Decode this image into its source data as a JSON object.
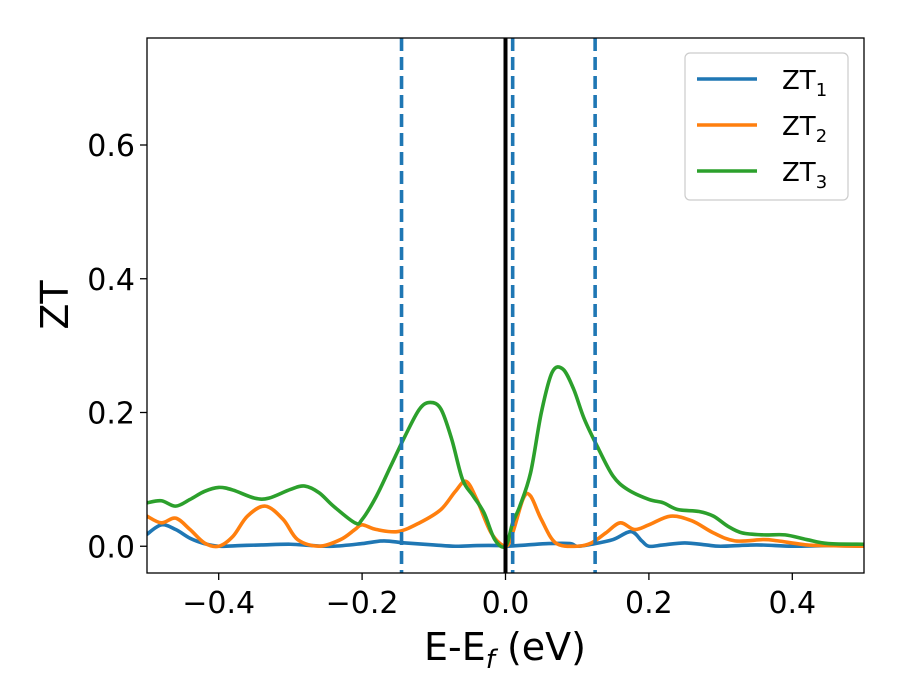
{
  "chart_data": {
    "type": "line",
    "xlabel_main": "E-E",
    "xlabel_sub": "f",
    "xlabel_unit": " (eV)",
    "ylabel": "ZT",
    "xlim": [
      -0.5,
      0.5
    ],
    "ylim": [
      -0.04,
      0.76
    ],
    "grid": false,
    "legend_position": "top-right",
    "x_ticks": [
      -0.4,
      -0.2,
      0.0,
      0.2,
      0.4
    ],
    "x_tick_labels": [
      "−0.4",
      "−0.2",
      "0.0",
      "0.2",
      "0.4"
    ],
    "y_ticks": [
      0.0,
      0.2,
      0.4,
      0.6
    ],
    "y_tick_labels": [
      "0.0",
      "0.2",
      "0.4",
      "0.6"
    ],
    "vertical_lines": [
      {
        "x": 0.0,
        "style": "solid",
        "color": "#000000"
      },
      {
        "x": -0.145,
        "style": "dashed",
        "color": "#1f77b4"
      },
      {
        "x": 0.01,
        "style": "dashed",
        "color": "#1f77b4"
      },
      {
        "x": 0.125,
        "style": "dashed",
        "color": "#1f77b4"
      }
    ],
    "series": [
      {
        "name_main": "ZT",
        "name_sub": "1",
        "color": "#1f77b4",
        "points": [
          [
            -0.5,
            0.018
          ],
          [
            -0.48,
            0.032
          ],
          [
            -0.46,
            0.025
          ],
          [
            -0.44,
            0.012
          ],
          [
            -0.42,
            0.004
          ],
          [
            -0.4,
            0.0
          ],
          [
            -0.37,
            0.001
          ],
          [
            -0.34,
            0.002
          ],
          [
            -0.3,
            0.003
          ],
          [
            -0.27,
            0.001
          ],
          [
            -0.24,
            0.0
          ],
          [
            -0.2,
            0.004
          ],
          [
            -0.17,
            0.008
          ],
          [
            -0.14,
            0.005
          ],
          [
            -0.1,
            0.002
          ],
          [
            -0.07,
            0.0
          ],
          [
            -0.04,
            0.001
          ],
          [
            -0.01,
            0.001
          ],
          [
            0.0,
            0.0
          ],
          [
            0.03,
            0.002
          ],
          [
            0.06,
            0.004
          ],
          [
            0.09,
            0.004
          ],
          [
            0.1,
            0.0
          ],
          [
            0.12,
            0.003
          ],
          [
            0.15,
            0.01
          ],
          [
            0.175,
            0.022
          ],
          [
            0.19,
            0.008
          ],
          [
            0.2,
            0.0
          ],
          [
            0.22,
            0.002
          ],
          [
            0.25,
            0.005
          ],
          [
            0.28,
            0.002
          ],
          [
            0.3,
            0.0
          ],
          [
            0.35,
            0.002
          ],
          [
            0.4,
            0.0
          ],
          [
            0.45,
            0.001
          ],
          [
            0.5,
            0.0
          ]
        ]
      },
      {
        "name_main": "ZT",
        "name_sub": "2",
        "color": "#ff7f0e",
        "points": [
          [
            -0.5,
            0.045
          ],
          [
            -0.48,
            0.035
          ],
          [
            -0.46,
            0.042
          ],
          [
            -0.44,
            0.025
          ],
          [
            -0.42,
            0.005
          ],
          [
            -0.4,
            0.0
          ],
          [
            -0.38,
            0.015
          ],
          [
            -0.36,
            0.045
          ],
          [
            -0.335,
            0.06
          ],
          [
            -0.31,
            0.04
          ],
          [
            -0.29,
            0.01
          ],
          [
            -0.26,
            0.0
          ],
          [
            -0.23,
            0.01
          ],
          [
            -0.21,
            0.025
          ],
          [
            -0.2,
            0.032
          ],
          [
            -0.18,
            0.025
          ],
          [
            -0.15,
            0.022
          ],
          [
            -0.12,
            0.035
          ],
          [
            -0.09,
            0.055
          ],
          [
            -0.07,
            0.082
          ],
          [
            -0.055,
            0.097
          ],
          [
            -0.04,
            0.07
          ],
          [
            -0.02,
            0.02
          ],
          [
            0.0,
            0.0
          ],
          [
            0.01,
            0.02
          ],
          [
            0.025,
            0.072
          ],
          [
            0.035,
            0.075
          ],
          [
            0.05,
            0.04
          ],
          [
            0.07,
            0.005
          ],
          [
            0.1,
            0.0
          ],
          [
            0.12,
            0.005
          ],
          [
            0.14,
            0.02
          ],
          [
            0.16,
            0.035
          ],
          [
            0.18,
            0.025
          ],
          [
            0.2,
            0.032
          ],
          [
            0.23,
            0.045
          ],
          [
            0.26,
            0.038
          ],
          [
            0.29,
            0.02
          ],
          [
            0.32,
            0.008
          ],
          [
            0.36,
            0.01
          ],
          [
            0.38,
            0.008
          ],
          [
            0.42,
            0.002
          ],
          [
            0.45,
            0.001
          ],
          [
            0.5,
            0.0
          ]
        ]
      },
      {
        "name_main": "ZT",
        "name_sub": "3",
        "color": "#2ca02c",
        "points": [
          [
            -0.5,
            0.065
          ],
          [
            -0.48,
            0.068
          ],
          [
            -0.46,
            0.06
          ],
          [
            -0.44,
            0.07
          ],
          [
            -0.42,
            0.082
          ],
          [
            -0.4,
            0.088
          ],
          [
            -0.38,
            0.084
          ],
          [
            -0.35,
            0.072
          ],
          [
            -0.33,
            0.072
          ],
          [
            -0.3,
            0.085
          ],
          [
            -0.28,
            0.09
          ],
          [
            -0.26,
            0.08
          ],
          [
            -0.24,
            0.06
          ],
          [
            -0.21,
            0.035
          ],
          [
            -0.2,
            0.04
          ],
          [
            -0.18,
            0.075
          ],
          [
            -0.16,
            0.12
          ],
          [
            -0.14,
            0.165
          ],
          [
            -0.12,
            0.205
          ],
          [
            -0.105,
            0.215
          ],
          [
            -0.09,
            0.205
          ],
          [
            -0.075,
            0.16
          ],
          [
            -0.06,
            0.1
          ],
          [
            -0.045,
            0.075
          ],
          [
            -0.03,
            0.05
          ],
          [
            -0.015,
            0.01
          ],
          [
            0.0,
            0.0
          ],
          [
            0.01,
            0.035
          ],
          [
            0.02,
            0.06
          ],
          [
            0.035,
            0.11
          ],
          [
            0.05,
            0.2
          ],
          [
            0.065,
            0.26
          ],
          [
            0.08,
            0.265
          ],
          [
            0.095,
            0.235
          ],
          [
            0.11,
            0.19
          ],
          [
            0.13,
            0.145
          ],
          [
            0.15,
            0.105
          ],
          [
            0.17,
            0.085
          ],
          [
            0.2,
            0.07
          ],
          [
            0.22,
            0.065
          ],
          [
            0.24,
            0.055
          ],
          [
            0.27,
            0.052
          ],
          [
            0.29,
            0.045
          ],
          [
            0.31,
            0.03
          ],
          [
            0.33,
            0.02
          ],
          [
            0.36,
            0.017
          ],
          [
            0.39,
            0.017
          ],
          [
            0.42,
            0.01
          ],
          [
            0.45,
            0.004
          ],
          [
            0.5,
            0.003
          ]
        ]
      }
    ]
  }
}
